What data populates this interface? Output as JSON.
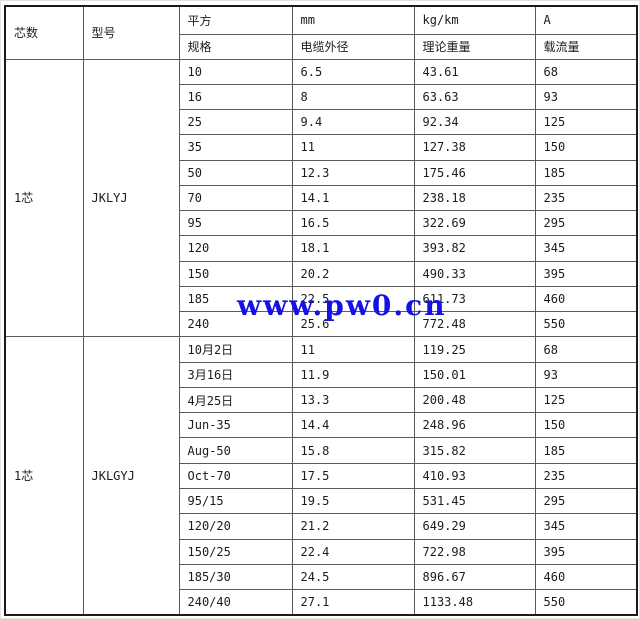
{
  "table": {
    "header": {
      "cores": "芯数",
      "model": "型号",
      "spec_unit": "平方",
      "spec_name": "规格",
      "od_unit": "mm",
      "od_name": "电缆外径",
      "weight_unit": "kg/km",
      "weight_name": "理论重量",
      "ampacity_unit": "A",
      "ampacity_name": "载流量"
    },
    "blocks": [
      {
        "cores": "1芯",
        "model": "JKLYJ",
        "rows": [
          [
            "10",
            "6.5",
            "43.61",
            "68"
          ],
          [
            "16",
            "8",
            "63.63",
            "93"
          ],
          [
            "25",
            "9.4",
            "92.34",
            "125"
          ],
          [
            "35",
            "11",
            "127.38",
            "150"
          ],
          [
            "50",
            "12.3",
            "175.46",
            "185"
          ],
          [
            "70",
            "14.1",
            "238.18",
            "235"
          ],
          [
            "95",
            "16.5",
            "322.69",
            "295"
          ],
          [
            "120",
            "18.1",
            "393.82",
            "345"
          ],
          [
            "150",
            "20.2",
            "490.33",
            "395"
          ],
          [
            "185",
            "22.5",
            "611.73",
            "460"
          ],
          [
            "240",
            "25.6",
            "772.48",
            "550"
          ]
        ]
      },
      {
        "cores": "1芯",
        "model": "JKLGYJ",
        "rows": [
          [
            "10月2日",
            "11",
            "119.25",
            "68"
          ],
          [
            "3月16日",
            "11.9",
            "150.01",
            "93"
          ],
          [
            "4月25日",
            "13.3",
            "200.48",
            "125"
          ],
          [
            "Jun-35",
            "14.4",
            "248.96",
            "150"
          ],
          [
            "Aug-50",
            "15.8",
            "315.82",
            "185"
          ],
          [
            "Oct-70",
            "17.5",
            "410.93",
            "235"
          ],
          [
            "95/15",
            "19.5",
            "531.45",
            "295"
          ],
          [
            "120/20",
            "21.2",
            "649.29",
            "345"
          ],
          [
            "150/25",
            "22.4",
            "722.98",
            "395"
          ],
          [
            "185/30",
            "24.5",
            "896.67",
            "460"
          ],
          [
            "240/40",
            "27.1",
            "1133.48",
            "550"
          ]
        ]
      }
    ]
  },
  "watermark": {
    "text": "www.pw0.cn",
    "color": "#1511e6"
  }
}
